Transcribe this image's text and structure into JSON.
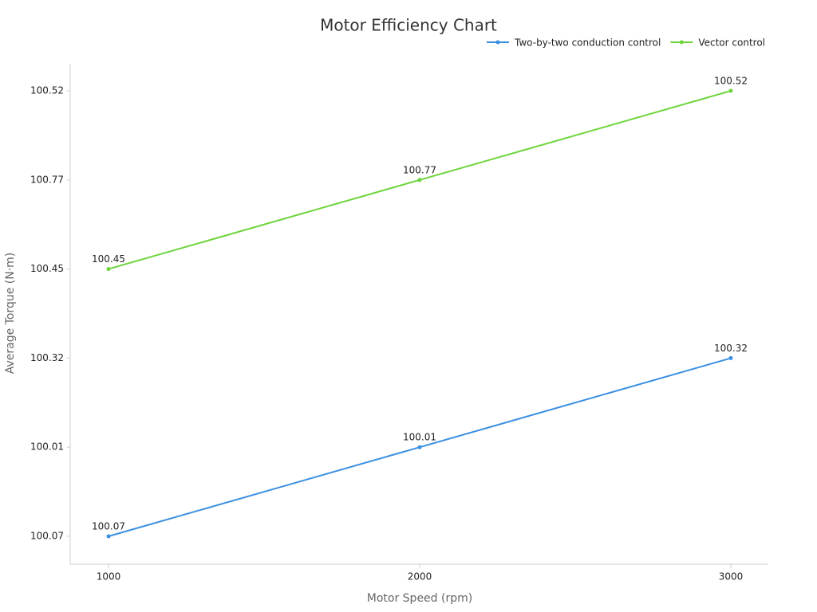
{
  "chart_data": {
    "type": "line",
    "title": "Motor Efficiency Chart",
    "x_label": "Motor Speed (rpm)",
    "y_label": "Average Torque (N·m)",
    "categories": [
      1000,
      2000,
      3000
    ],
    "ycategories": [
      100.07,
      100.01,
      100.32,
      100.45,
      100.77,
      100.52
    ],
    "series": [
      {
        "name": "Two-by-two conduction control",
        "color": "#3a8fe2",
        "values": [
          100.07,
          100.01,
          100.32
        ]
      },
      {
        "name": "Vector control",
        "color": "#6dd43a",
        "values": [
          100.45,
          100.77,
          100.52
        ]
      }
    ],
    "legend": "top-right"
  }
}
